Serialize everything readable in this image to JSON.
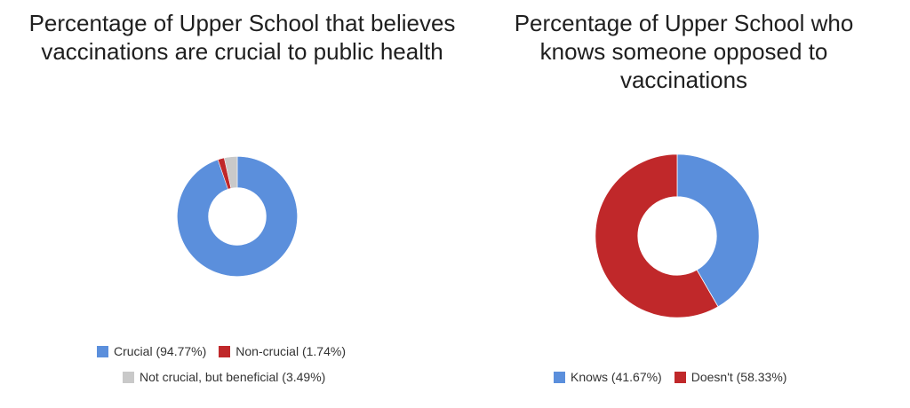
{
  "colors": {
    "blue": "#5b8fdc",
    "red": "#c0282a",
    "gray": "#c9c9c9"
  },
  "chart_data": [
    {
      "type": "pie",
      "title": "Percentage of Upper School that believes vaccinations are crucial to public health",
      "slices": [
        {
          "label": "Crucial (94.77%)",
          "value": 94.77,
          "color": "#5b8fdc"
        },
        {
          "label": "Non-crucial (1.74%)",
          "value": 1.74,
          "color": "#c0282a"
        },
        {
          "label": "Not crucial, but beneficial (3.49%)",
          "value": 3.49,
          "color": "#c9c9c9"
        }
      ],
      "legend_position": "bottom"
    },
    {
      "type": "pie",
      "title": "Percentage of Upper School who knows someone opposed to vaccinations",
      "slices": [
        {
          "label": "Knows (41.67%)",
          "value": 41.67,
          "color": "#5b8fdc"
        },
        {
          "label": "Doesn't (58.33%)",
          "value": 58.33,
          "color": "#c0282a"
        }
      ],
      "legend_position": "bottom"
    }
  ]
}
